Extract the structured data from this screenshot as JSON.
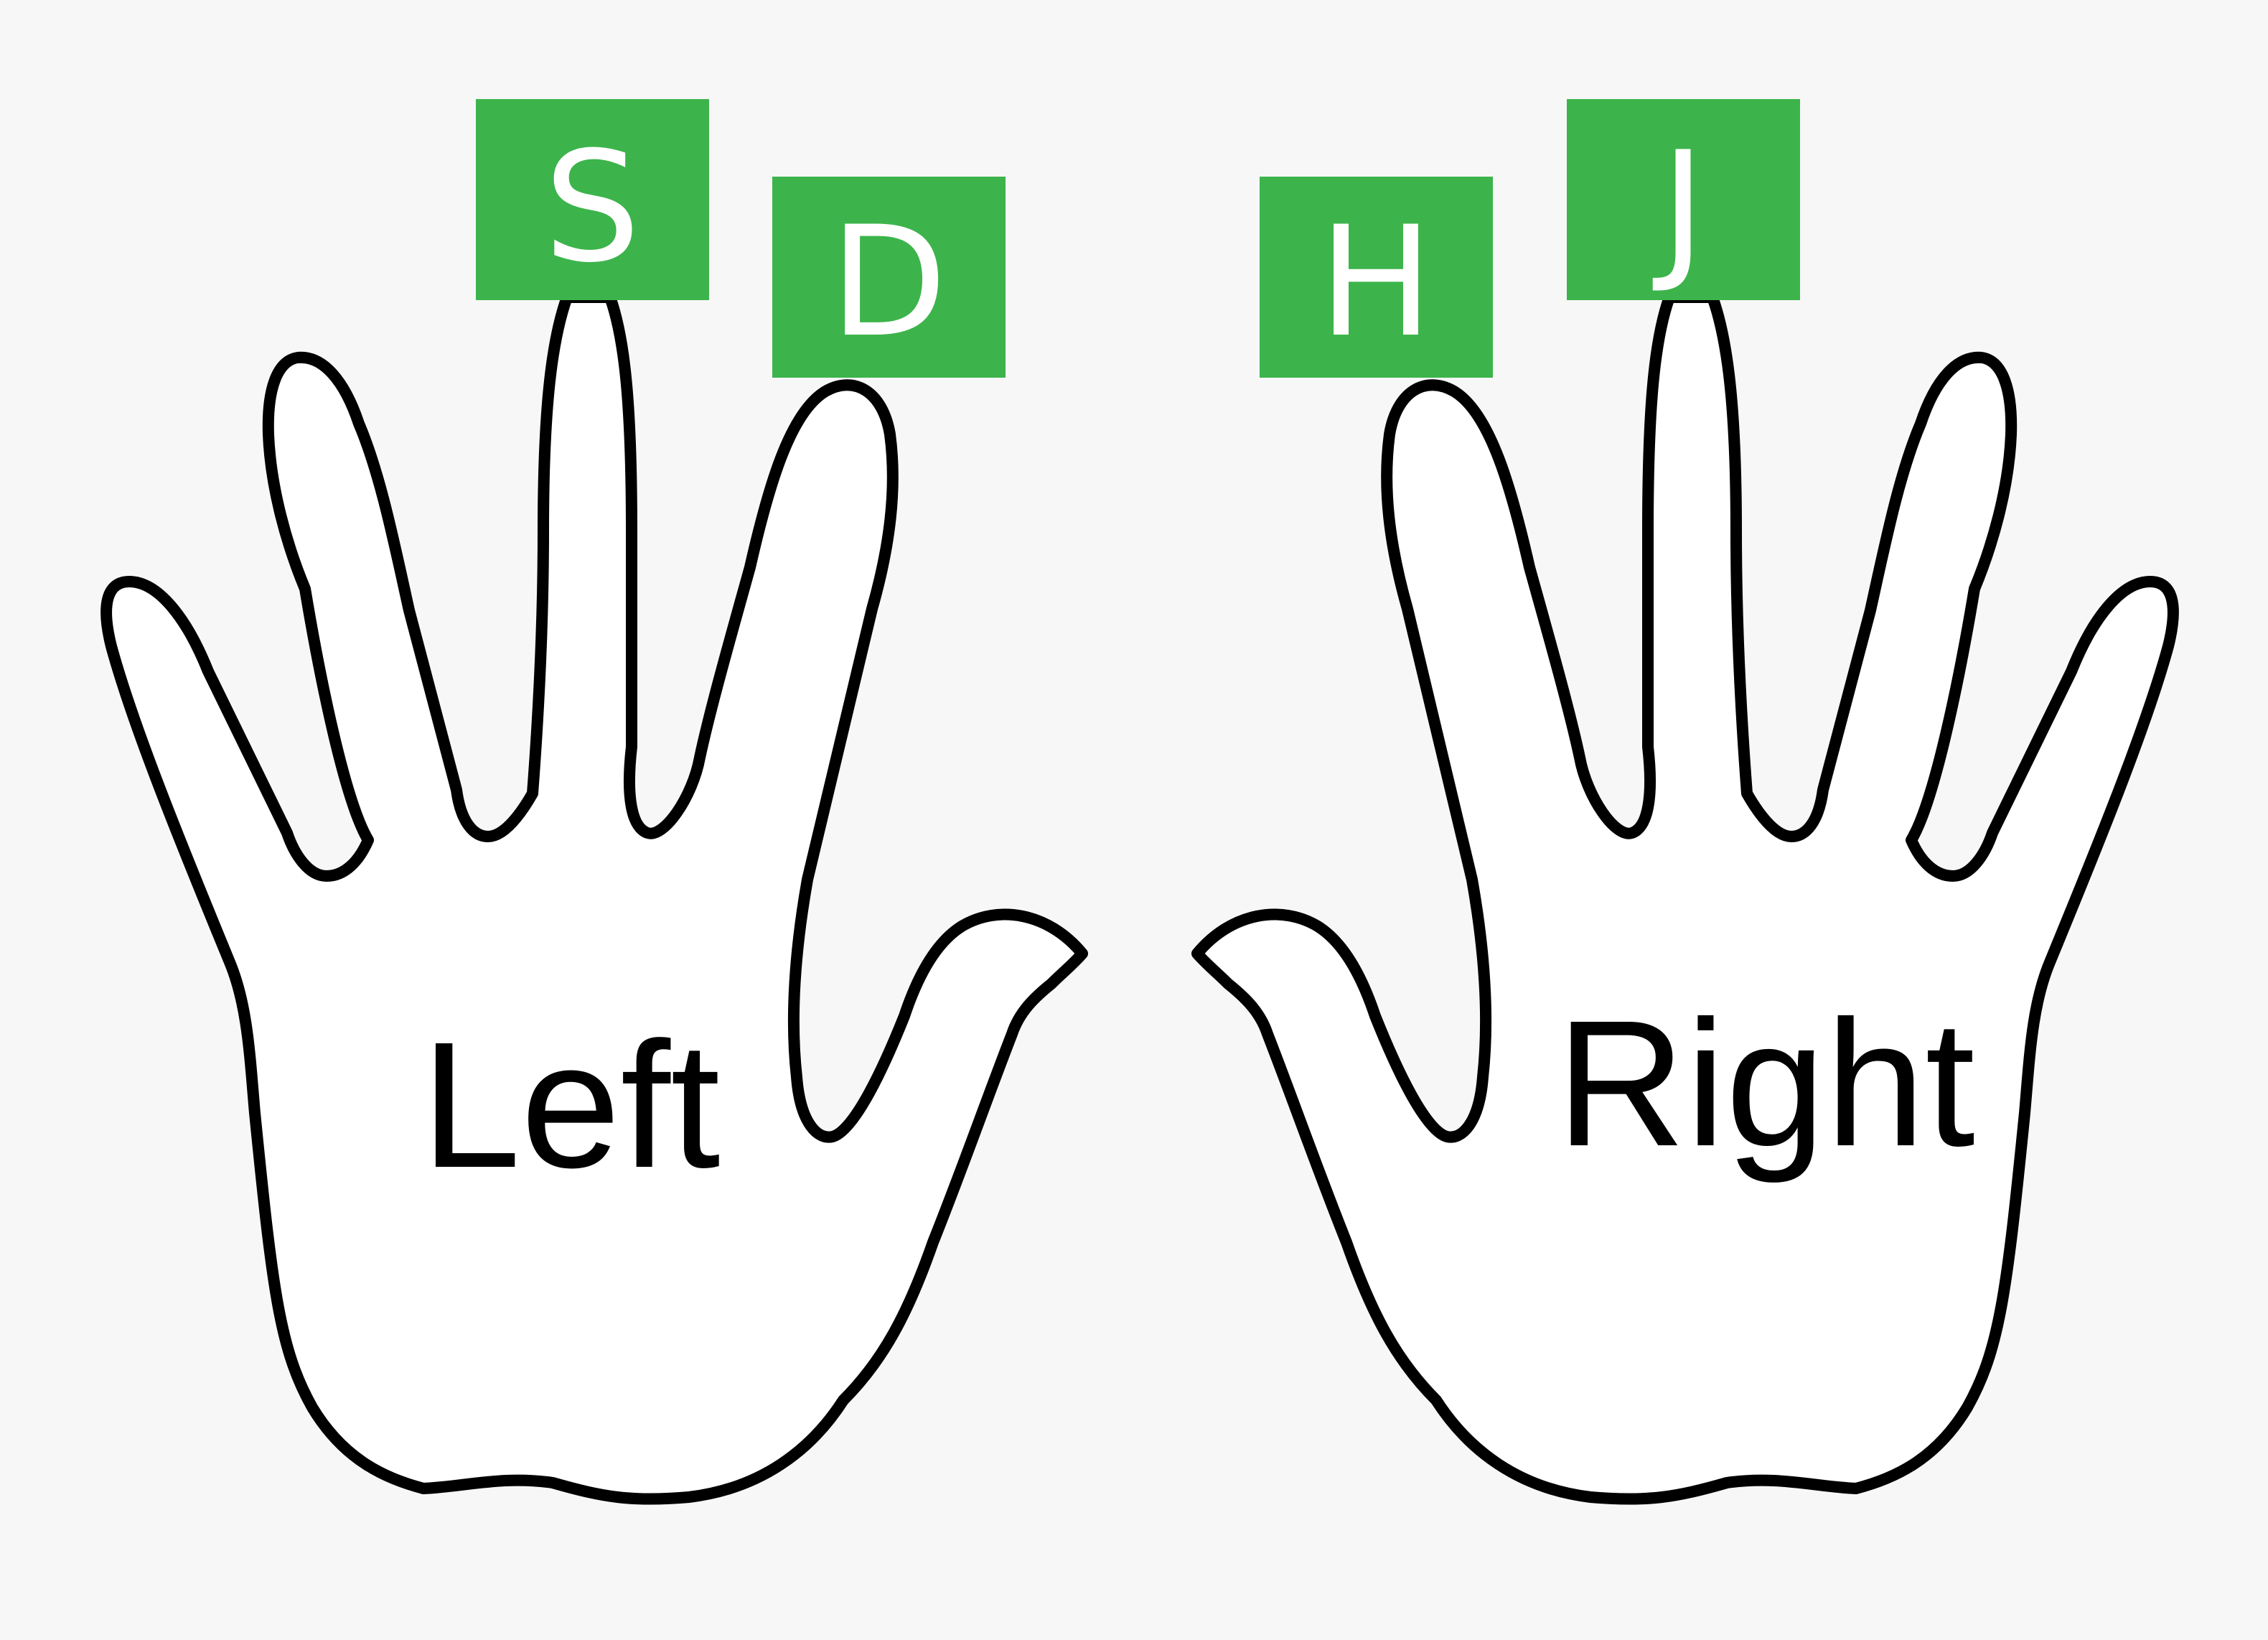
{
  "colors": {
    "background": "#f7f7f7",
    "key_fill": "#3cb44b",
    "key_text": "#ffffff",
    "outline": "#000000",
    "hand_fill": "#ffffff"
  },
  "hands": {
    "left": {
      "label": "Left",
      "keys": [
        {
          "letter": "S"
        },
        {
          "letter": "D"
        }
      ]
    },
    "right": {
      "label": "Right",
      "keys": [
        {
          "letter": "H"
        },
        {
          "letter": "J"
        }
      ]
    }
  }
}
